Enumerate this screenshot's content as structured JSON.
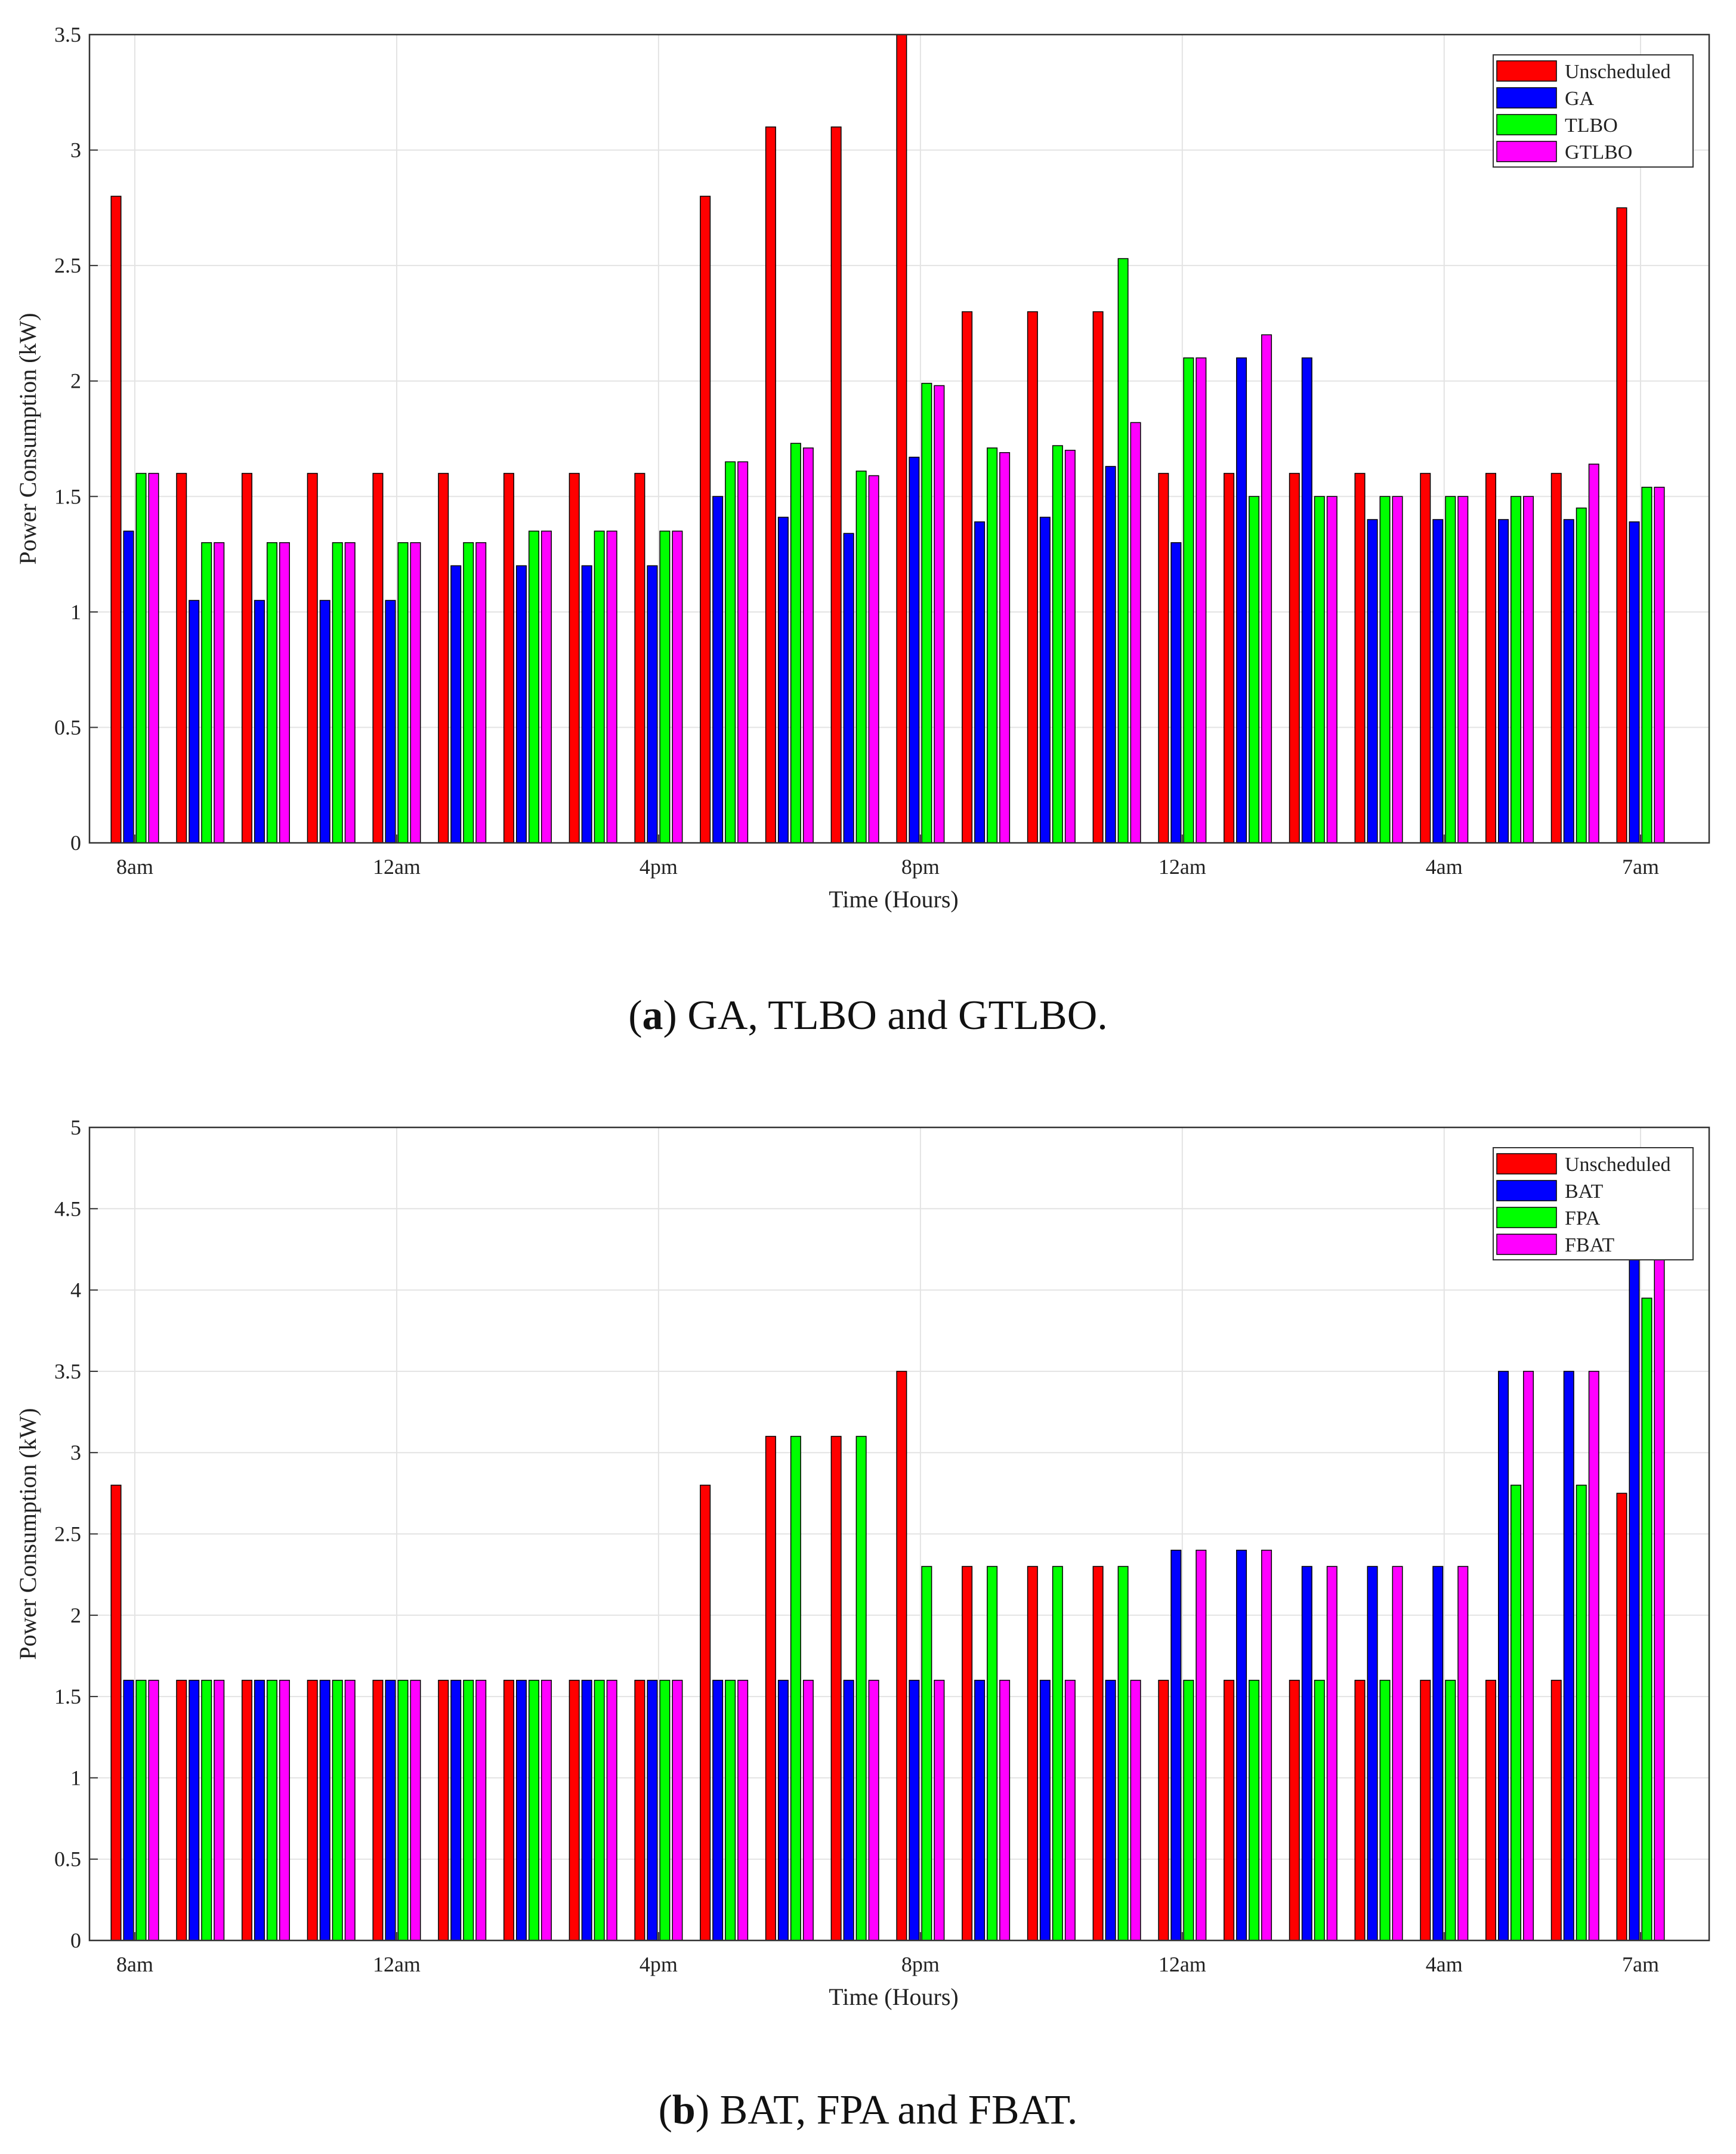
{
  "chart_data": [
    {
      "id": "a",
      "type": "bar",
      "xlabel": "Time (Hours)",
      "ylabel": "Power Consumption (kW)",
      "ylim": [
        0,
        3.5
      ],
      "yticks": [
        "0",
        "0.5",
        "1",
        "1.5",
        "2",
        "2.5",
        "3",
        "3.5"
      ],
      "xtick_labels": [
        {
          "index": 0,
          "label": "8am"
        },
        {
          "index": 4,
          "label": "12am"
        },
        {
          "index": 8,
          "label": "4pm"
        },
        {
          "index": 12,
          "label": "8pm"
        },
        {
          "index": 16,
          "label": "12am"
        },
        {
          "index": 20,
          "label": "4am"
        },
        {
          "index": 23,
          "label": "7am"
        }
      ],
      "grid": true,
      "legend_position": "top-right",
      "caption_letter": "a",
      "caption_text": " GA, TLBO and GTLBO.",
      "series": [
        {
          "name": "Unscheduled",
          "color": "#ff0000",
          "values": [
            2.8,
            1.6,
            1.6,
            1.6,
            1.6,
            1.6,
            1.6,
            1.6,
            1.6,
            2.8,
            3.1,
            3.1,
            3.5,
            2.3,
            2.3,
            2.3,
            1.6,
            1.6,
            1.6,
            1.6,
            1.6,
            1.6,
            1.6,
            2.75
          ]
        },
        {
          "name": "GA",
          "color": "#0000ff",
          "values": [
            1.35,
            1.05,
            1.05,
            1.05,
            1.05,
            1.2,
            1.2,
            1.2,
            1.2,
            1.5,
            1.41,
            1.34,
            1.67,
            1.39,
            1.41,
            1.63,
            1.3,
            2.1,
            2.1,
            1.4,
            1.4,
            1.4,
            1.4,
            1.39
          ]
        },
        {
          "name": "TLBO",
          "color": "#00ff00",
          "values": [
            1.6,
            1.3,
            1.3,
            1.3,
            1.3,
            1.3,
            1.35,
            1.35,
            1.35,
            1.65,
            1.73,
            1.61,
            1.99,
            1.71,
            1.72,
            2.53,
            2.1,
            1.5,
            1.5,
            1.5,
            1.5,
            1.5,
            1.45,
            1.54
          ]
        },
        {
          "name": "GTLBO",
          "color": "#ff00ff",
          "values": [
            1.6,
            1.3,
            1.3,
            1.3,
            1.3,
            1.3,
            1.35,
            1.35,
            1.35,
            1.65,
            1.71,
            1.59,
            1.98,
            1.69,
            1.7,
            1.82,
            2.1,
            2.2,
            1.5,
            1.5,
            1.5,
            1.5,
            1.64,
            1.54
          ]
        }
      ]
    },
    {
      "id": "b",
      "type": "bar",
      "xlabel": "Time (Hours)",
      "ylabel": "Power Consumption (kW)",
      "ylim": [
        0,
        5
      ],
      "yticks": [
        "0",
        "0.5",
        "1",
        "1.5",
        "2",
        "2.5",
        "3",
        "3.5",
        "4",
        "4.5",
        "5"
      ],
      "xtick_labels": [
        {
          "index": 0,
          "label": "8am"
        },
        {
          "index": 4,
          "label": "12am"
        },
        {
          "index": 8,
          "label": "4pm"
        },
        {
          "index": 12,
          "label": "8pm"
        },
        {
          "index": 16,
          "label": "12am"
        },
        {
          "index": 20,
          "label": "4am"
        },
        {
          "index": 23,
          "label": "7am"
        }
      ],
      "grid": true,
      "legend_position": "top-right",
      "caption_letter": "b",
      "caption_text": " BAT, FPA and FBAT.",
      "series": [
        {
          "name": "Unscheduled",
          "color": "#ff0000",
          "values": [
            2.8,
            1.6,
            1.6,
            1.6,
            1.6,
            1.6,
            1.6,
            1.6,
            1.6,
            2.8,
            3.1,
            3.1,
            3.5,
            2.3,
            2.3,
            2.3,
            1.6,
            1.6,
            1.6,
            1.6,
            1.6,
            1.6,
            1.6,
            2.75
          ]
        },
        {
          "name": "BAT",
          "color": "#0000ff",
          "values": [
            1.6,
            1.6,
            1.6,
            1.6,
            1.6,
            1.6,
            1.6,
            1.6,
            1.6,
            1.6,
            1.6,
            1.6,
            1.6,
            1.6,
            1.6,
            1.6,
            2.4,
            2.4,
            2.3,
            2.3,
            2.3,
            3.5,
            3.5,
            4.2
          ]
        },
        {
          "name": "FPA",
          "color": "#00ff00",
          "values": [
            1.6,
            1.6,
            1.6,
            1.6,
            1.6,
            1.6,
            1.6,
            1.6,
            1.6,
            1.6,
            3.1,
            3.1,
            2.3,
            2.3,
            2.3,
            2.3,
            1.6,
            1.6,
            1.6,
            1.6,
            1.6,
            2.8,
            2.8,
            3.95
          ]
        },
        {
          "name": "FBAT",
          "color": "#ff00ff",
          "values": [
            1.6,
            1.6,
            1.6,
            1.6,
            1.6,
            1.6,
            1.6,
            1.6,
            1.6,
            1.6,
            1.6,
            1.6,
            1.6,
            1.6,
            1.6,
            1.6,
            2.4,
            2.4,
            2.3,
            2.3,
            2.3,
            3.5,
            3.5,
            4.2
          ]
        }
      ]
    }
  ]
}
